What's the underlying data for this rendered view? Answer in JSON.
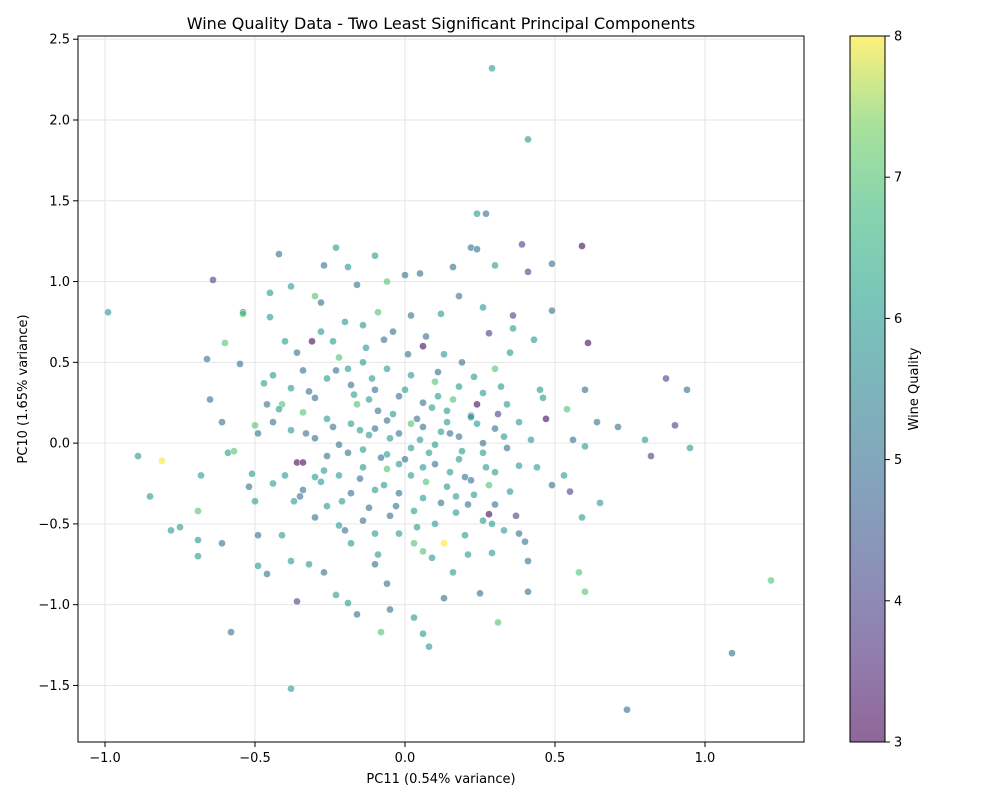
{
  "chart_data": {
    "type": "scatter",
    "title": "Wine Quality Data - Two Least Significant Principal Components",
    "xlabel": "PC11 (0.54% variance)",
    "ylabel": "PC10 (1.65% variance)",
    "xlim": [
      -1.09,
      1.33
    ],
    "ylim": [
      -1.85,
      2.52
    ],
    "xticks": [
      -1.0,
      -0.5,
      0.0,
      0.5,
      1.0
    ],
    "xtick_labels": [
      "−1.0",
      "−0.5",
      "0.0",
      "0.5",
      "1.0"
    ],
    "yticks": [
      -1.5,
      -1.0,
      -0.5,
      0.0,
      0.5,
      1.0,
      1.5,
      2.0,
      2.5
    ],
    "ytick_labels": [
      "−1.5",
      "−1.0",
      "−0.5",
      "0.0",
      "0.5",
      "1.0",
      "1.5",
      "2.0",
      "2.5"
    ],
    "grid": true,
    "colorbar": {
      "label": "Wine Quality",
      "min": 3,
      "max": 8,
      "ticks": [
        3,
        4,
        5,
        6,
        7,
        8
      ],
      "tick_labels": [
        "3",
        "4",
        "5",
        "6",
        "7",
        "8"
      ],
      "colormap": "viridis"
    },
    "points": [
      [
        0.29,
        2.32,
        6
      ],
      [
        0.41,
        1.88,
        6
      ],
      [
        0.59,
        1.22,
        3
      ],
      [
        0.39,
        1.23,
        4
      ],
      [
        0.49,
        1.11,
        5
      ],
      [
        0.41,
        1.06,
        4
      ],
      [
        0.27,
        1.42,
        5
      ],
      [
        0.24,
        1.42,
        6
      ],
      [
        0.22,
        1.21,
        5
      ],
      [
        0.24,
        1.2,
        5
      ],
      [
        0.3,
        1.1,
        6
      ],
      [
        -0.64,
        1.01,
        4
      ],
      [
        -0.99,
        0.81,
        6
      ],
      [
        -0.54,
        0.81,
        5
      ],
      [
        -0.54,
        0.8,
        7
      ],
      [
        0.49,
        0.82,
        5
      ],
      [
        0.61,
        0.62,
        3
      ],
      [
        0.87,
        0.4,
        4
      ],
      [
        0.94,
        0.33,
        5
      ],
      [
        0.6,
        0.33,
        5
      ],
      [
        0.9,
        0.11,
        4
      ],
      [
        0.82,
        -0.08,
        4
      ],
      [
        0.95,
        -0.03,
        6
      ],
      [
        0.8,
        0.02,
        6
      ],
      [
        0.71,
        0.1,
        5
      ],
      [
        0.64,
        0.13,
        5
      ],
      [
        0.55,
        -0.3,
        4
      ],
      [
        0.59,
        -0.46,
        6
      ],
      [
        0.58,
        -0.8,
        7
      ],
      [
        0.6,
        -0.92,
        7
      ],
      [
        1.22,
        -0.85,
        7
      ],
      [
        1.09,
        -1.3,
        5
      ],
      [
        0.74,
        -1.65,
        5
      ],
      [
        -0.38,
        -1.52,
        6
      ],
      [
        -0.58,
        -1.17,
        5
      ],
      [
        -0.36,
        -0.98,
        4
      ],
      [
        0.06,
        -1.18,
        6
      ],
      [
        0.08,
        -1.26,
        6
      ],
      [
        -0.08,
        -1.17,
        7
      ],
      [
        0.31,
        -1.11,
        7
      ],
      [
        -0.81,
        -0.11,
        8
      ],
      [
        -0.89,
        -0.08,
        6
      ],
      [
        -0.85,
        -0.33,
        6
      ],
      [
        -0.78,
        -0.54,
        6
      ],
      [
        -0.75,
        -0.52,
        6
      ],
      [
        -0.69,
        -0.42,
        7
      ],
      [
        -0.69,
        -0.7,
        6
      ],
      [
        -0.69,
        -0.6,
        6
      ],
      [
        -0.61,
        -0.62,
        5
      ],
      [
        -0.68,
        -0.2,
        6
      ],
      [
        -0.59,
        -0.06,
        6
      ],
      [
        -0.57,
        -0.05,
        7
      ],
      [
        -0.61,
        0.13,
        5
      ],
      [
        -0.65,
        0.27,
        5
      ],
      [
        -0.66,
        0.52,
        5
      ],
      [
        -0.6,
        0.62,
        7
      ],
      [
        -0.55,
        0.49,
        5
      ],
      [
        -0.45,
        0.78,
        6
      ],
      [
        -0.45,
        0.93,
        6
      ],
      [
        -0.42,
        1.17,
        5
      ],
      [
        -0.23,
        1.21,
        6
      ],
      [
        -0.27,
        1.1,
        5
      ],
      [
        -0.19,
        1.09,
        6
      ],
      [
        -0.1,
        1.16,
        6
      ],
      [
        0.05,
        1.05,
        5
      ],
      [
        0.16,
        1.09,
        5
      ],
      [
        -0.16,
        0.98,
        5
      ],
      [
        -0.06,
        1.0,
        7
      ],
      [
        0.0,
        1.04,
        5
      ],
      [
        -0.3,
        0.91,
        7
      ],
      [
        -0.38,
        0.97,
        6
      ],
      [
        -0.28,
        0.87,
        5
      ],
      [
        -0.31,
        0.63,
        3
      ],
      [
        -0.36,
        -0.12,
        3
      ],
      [
        0.47,
        0.15,
        3
      ],
      [
        0.28,
        -0.44,
        3
      ],
      [
        0.24,
        0.24,
        3
      ],
      [
        0.06,
        0.6,
        3
      ],
      [
        0.28,
        0.68,
        4
      ],
      [
        0.36,
        0.79,
        4
      ],
      [
        0.37,
        -0.45,
        4
      ],
      [
        0.31,
        0.18,
        4
      ],
      [
        0.49,
        -0.26,
        5
      ],
      [
        0.54,
        0.21,
        7
      ],
      [
        0.56,
        0.02,
        5
      ],
      [
        0.53,
        -0.2,
        6
      ],
      [
        0.65,
        -0.37,
        6
      ],
      [
        0.6,
        -0.02,
        6
      ],
      [
        0.45,
        0.33,
        6
      ],
      [
        0.43,
        0.64,
        6
      ],
      [
        0.36,
        0.71,
        6
      ],
      [
        0.35,
        0.56,
        6
      ],
      [
        0.26,
        0.84,
        6
      ],
      [
        0.18,
        0.91,
        5
      ],
      [
        0.3,
        0.46,
        7
      ],
      [
        0.12,
        0.8,
        6
      ],
      [
        0.02,
        0.79,
        5
      ],
      [
        -0.04,
        0.69,
        5
      ],
      [
        -0.09,
        0.81,
        7
      ],
      [
        -0.14,
        0.73,
        6
      ],
      [
        -0.2,
        0.75,
        6
      ],
      [
        -0.24,
        0.63,
        6
      ],
      [
        -0.28,
        0.69,
        6
      ],
      [
        -0.36,
        0.56,
        5
      ],
      [
        -0.4,
        0.63,
        6
      ],
      [
        -0.44,
        0.42,
        6
      ],
      [
        -0.47,
        0.37,
        6
      ],
      [
        -0.41,
        0.24,
        7
      ],
      [
        -0.44,
        0.13,
        5
      ],
      [
        -0.5,
        0.11,
        7
      ],
      [
        -0.49,
        0.06,
        5
      ],
      [
        -0.51,
        -0.19,
        6
      ],
      [
        -0.52,
        -0.27,
        5
      ],
      [
        -0.5,
        -0.36,
        6
      ],
      [
        -0.49,
        -0.57,
        5
      ],
      [
        -0.49,
        -0.76,
        6
      ],
      [
        -0.46,
        -0.81,
        5
      ],
      [
        -0.41,
        -0.57,
        6
      ],
      [
        -0.38,
        -0.73,
        6
      ],
      [
        -0.32,
        -0.75,
        6
      ],
      [
        -0.27,
        -0.8,
        5
      ],
      [
        -0.23,
        -0.94,
        6
      ],
      [
        -0.19,
        -0.99,
        6
      ],
      [
        -0.16,
        -1.06,
        5
      ],
      [
        -0.1,
        -0.75,
        5
      ],
      [
        -0.06,
        -0.87,
        5
      ],
      [
        -0.05,
        -1.03,
        5
      ],
      [
        0.03,
        -1.08,
        6
      ],
      [
        0.13,
        -0.96,
        5
      ],
      [
        0.16,
        -0.8,
        6
      ],
      [
        0.21,
        -0.69,
        6
      ],
      [
        0.25,
        -0.93,
        5
      ],
      [
        0.29,
        -0.68,
        6
      ],
      [
        0.4,
        -0.61,
        5
      ],
      [
        0.41,
        -0.73,
        5
      ],
      [
        0.41,
        -0.92,
        5
      ],
      [
        0.38,
        -0.56,
        5
      ],
      [
        0.33,
        -0.54,
        6
      ],
      [
        0.29,
        -0.5,
        6
      ],
      [
        0.3,
        -0.38,
        5
      ],
      [
        0.26,
        -0.48,
        6
      ],
      [
        0.23,
        -0.32,
        6
      ],
      [
        0.2,
        -0.21,
        5
      ],
      [
        0.17,
        -0.43,
        6
      ],
      [
        0.13,
        -0.62,
        8
      ],
      [
        0.1,
        -0.5,
        6
      ],
      [
        0.06,
        -0.67,
        7
      ],
      [
        0.03,
        -0.62,
        7
      ],
      [
        -0.02,
        -0.56,
        6
      ],
      [
        -0.05,
        -0.45,
        5
      ],
      [
        -0.1,
        -0.56,
        6
      ],
      [
        -0.14,
        -0.48,
        5
      ],
      [
        -0.18,
        -0.62,
        6
      ],
      [
        -0.22,
        -0.51,
        6
      ],
      [
        -0.26,
        -0.39,
        6
      ],
      [
        -0.3,
        -0.46,
        5
      ],
      [
        -0.34,
        -0.29,
        5
      ],
      [
        -0.37,
        -0.36,
        6
      ],
      [
        -0.4,
        -0.2,
        6
      ],
      [
        -0.34,
        -0.12,
        3
      ],
      [
        -0.3,
        -0.21,
        6
      ],
      [
        -0.26,
        -0.08,
        5
      ],
      [
        -0.22,
        -0.2,
        6
      ],
      [
        -0.18,
        -0.31,
        5
      ],
      [
        -0.14,
        -0.15,
        6
      ],
      [
        -0.1,
        -0.29,
        6
      ],
      [
        -0.06,
        -0.16,
        7
      ],
      [
        -0.02,
        -0.31,
        5
      ],
      [
        0.02,
        -0.2,
        6
      ],
      [
        0.06,
        -0.34,
        6
      ],
      [
        0.1,
        -0.13,
        5
      ],
      [
        0.14,
        -0.27,
        6
      ],
      [
        0.18,
        -0.1,
        6
      ],
      [
        0.22,
        -0.23,
        5
      ],
      [
        0.26,
        -0.06,
        6
      ],
      [
        0.3,
        -0.18,
        6
      ],
      [
        0.34,
        -0.03,
        5
      ],
      [
        0.38,
        -0.14,
        6
      ],
      [
        0.42,
        0.02,
        6
      ],
      [
        0.38,
        0.13,
        6
      ],
      [
        0.34,
        0.24,
        6
      ],
      [
        0.3,
        0.09,
        5
      ],
      [
        0.26,
        0.31,
        6
      ],
      [
        0.22,
        0.17,
        5
      ],
      [
        0.18,
        0.35,
        6
      ],
      [
        0.14,
        0.2,
        6
      ],
      [
        0.1,
        0.38,
        7
      ],
      [
        0.06,
        0.25,
        5
      ],
      [
        0.02,
        0.42,
        6
      ],
      [
        -0.02,
        0.29,
        5
      ],
      [
        -0.06,
        0.46,
        6
      ],
      [
        -0.1,
        0.33,
        5
      ],
      [
        -0.14,
        0.5,
        6
      ],
      [
        -0.18,
        0.36,
        5
      ],
      [
        -0.22,
        0.53,
        7
      ],
      [
        -0.26,
        0.4,
        6
      ],
      [
        -0.3,
        0.28,
        5
      ],
      [
        -0.34,
        0.45,
        5
      ],
      [
        -0.38,
        0.34,
        6
      ],
      [
        -0.42,
        0.21,
        6
      ],
      [
        -0.38,
        0.08,
        6
      ],
      [
        -0.34,
        0.19,
        7
      ],
      [
        -0.3,
        0.03,
        5
      ],
      [
        -0.26,
        0.15,
        6
      ],
      [
        -0.22,
        -0.01,
        5
      ],
      [
        -0.18,
        0.12,
        6
      ],
      [
        -0.14,
        -0.04,
        6
      ],
      [
        -0.1,
        0.09,
        5
      ],
      [
        -0.06,
        -0.07,
        6
      ],
      [
        -0.02,
        0.06,
        5
      ],
      [
        0.02,
        -0.03,
        6
      ],
      [
        0.06,
        0.1,
        5
      ],
      [
        0.1,
        -0.01,
        6
      ],
      [
        0.14,
        0.13,
        6
      ],
      [
        0.18,
        0.04,
        5
      ],
      [
        0.22,
        0.16,
        6
      ],
      [
        0.26,
        0.0,
        5
      ],
      [
        0.05,
        0.02,
        6
      ],
      [
        -0.05,
        0.03,
        6
      ],
      [
        0.0,
        -0.1,
        5
      ],
      [
        0.08,
        -0.06,
        6
      ],
      [
        -0.08,
        -0.09,
        5
      ],
      [
        0.12,
        0.07,
        6
      ],
      [
        -0.12,
        0.05,
        6
      ],
      [
        0.04,
        0.15,
        5
      ],
      [
        -0.04,
        0.18,
        6
      ],
      [
        0.09,
        0.22,
        6
      ],
      [
        -0.09,
        0.2,
        5
      ],
      [
        0.15,
        -0.18,
        6
      ],
      [
        -0.15,
        -0.22,
        5
      ],
      [
        0.07,
        -0.24,
        7
      ],
      [
        -0.07,
        -0.26,
        6
      ],
      [
        0.0,
        0.33,
        6
      ],
      [
        0.11,
        0.44,
        5
      ],
      [
        -0.11,
        0.4,
        6
      ],
      [
        0.19,
        0.5,
        5
      ],
      [
        -0.19,
        0.46,
        6
      ],
      [
        0.21,
        -0.38,
        5
      ],
      [
        -0.21,
        -0.36,
        6
      ],
      [
        0.03,
        -0.42,
        6
      ],
      [
        -0.03,
        -0.39,
        5
      ],
      [
        0.16,
        0.27,
        7
      ],
      [
        -0.16,
        0.24,
        7
      ],
      [
        0.24,
        0.12,
        6
      ],
      [
        -0.24,
        0.1,
        5
      ],
      [
        0.27,
        -0.15,
        6
      ],
      [
        -0.27,
        -0.17,
        6
      ],
      [
        0.32,
        0.35,
        6
      ],
      [
        -0.32,
        0.32,
        5
      ],
      [
        0.35,
        -0.3,
        6
      ],
      [
        -0.35,
        -0.33,
        5
      ],
      [
        0.13,
        0.55,
        6
      ],
      [
        -0.13,
        0.59,
        6
      ],
      [
        0.07,
        0.66,
        5
      ],
      [
        -0.07,
        0.64,
        5
      ],
      [
        0.2,
        -0.57,
        6
      ],
      [
        -0.2,
        -0.54,
        5
      ],
      [
        0.09,
        -0.71,
        6
      ],
      [
        -0.09,
        -0.69,
        6
      ],
      [
        0.44,
        -0.15,
        6
      ],
      [
        0.46,
        0.28,
        6
      ],
      [
        -0.44,
        -0.25,
        6
      ],
      [
        -0.46,
        0.24,
        5
      ],
      [
        0.01,
        0.55,
        5
      ],
      [
        0.04,
        -0.52,
        6
      ],
      [
        0.11,
        0.29,
        6
      ],
      [
        -0.12,
        -0.4,
        5
      ],
      [
        0.17,
        -0.33,
        6
      ],
      [
        -0.17,
        0.3,
        6
      ],
      [
        0.23,
        0.41,
        6
      ],
      [
        -0.23,
        0.45,
        5
      ],
      [
        0.28,
        -0.26,
        7
      ],
      [
        -0.28,
        -0.24,
        6
      ],
      [
        0.33,
        0.04,
        6
      ],
      [
        -0.33,
        0.06,
        5
      ],
      [
        0.15,
        0.06,
        5
      ],
      [
        -0.15,
        0.08,
        6
      ],
      [
        0.06,
        -0.15,
        6
      ],
      [
        -0.06,
        0.14,
        5
      ],
      [
        0.19,
        -0.05,
        6
      ],
      [
        -0.19,
        -0.06,
        5
      ],
      [
        0.02,
        0.12,
        7
      ],
      [
        -0.02,
        -0.13,
        6
      ],
      [
        0.12,
        -0.37,
        5
      ],
      [
        -0.12,
        0.27,
        6
      ]
    ]
  }
}
